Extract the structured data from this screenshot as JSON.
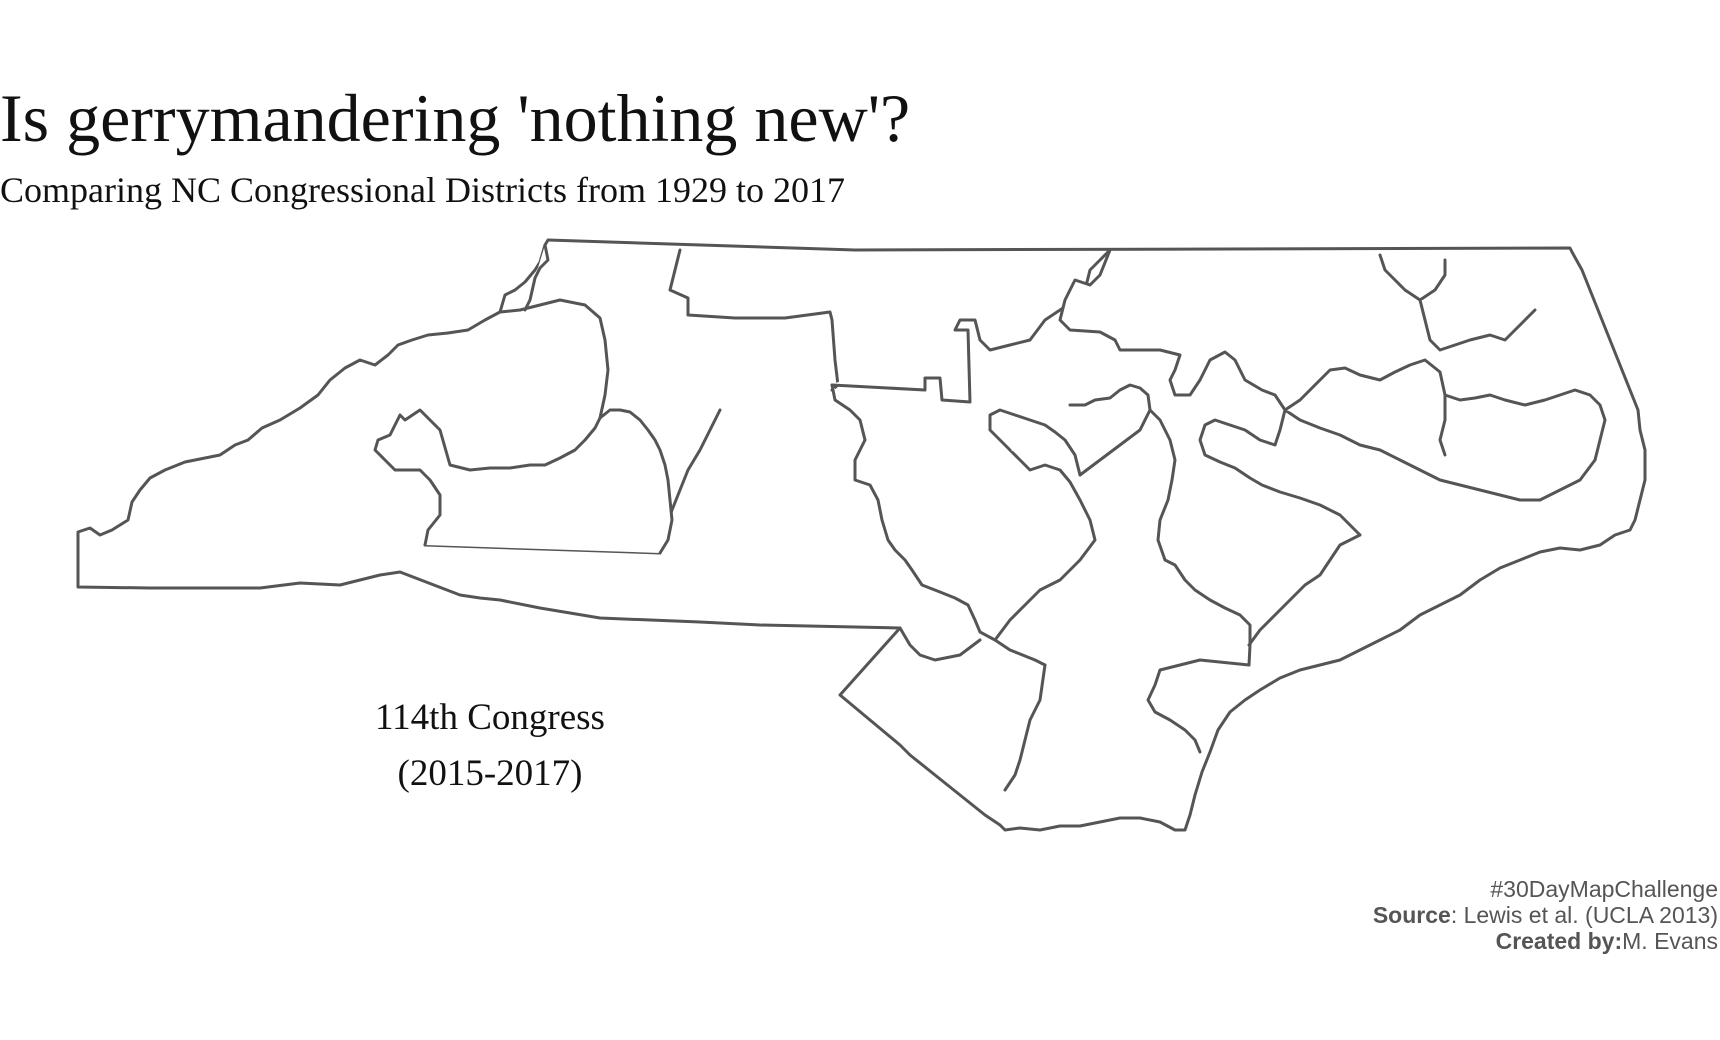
{
  "title": "Is gerrymandering 'nothing new'?",
  "subtitle": "Comparing NC Congressional Districts from 1929 to 2017",
  "congress": {
    "name": "114th Congress",
    "years": "(2015-2017)"
  },
  "credits": {
    "hashtag": "#30DayMapChallenge",
    "source_label": "Source",
    "source_text": ": Lewis et al. (UCLA 2013)",
    "author_label": "Created by:",
    "author_text": "M. Evans"
  },
  "map": {
    "region": "North Carolina",
    "stroke_color": "#555555",
    "fill_color": "#ffffff"
  }
}
